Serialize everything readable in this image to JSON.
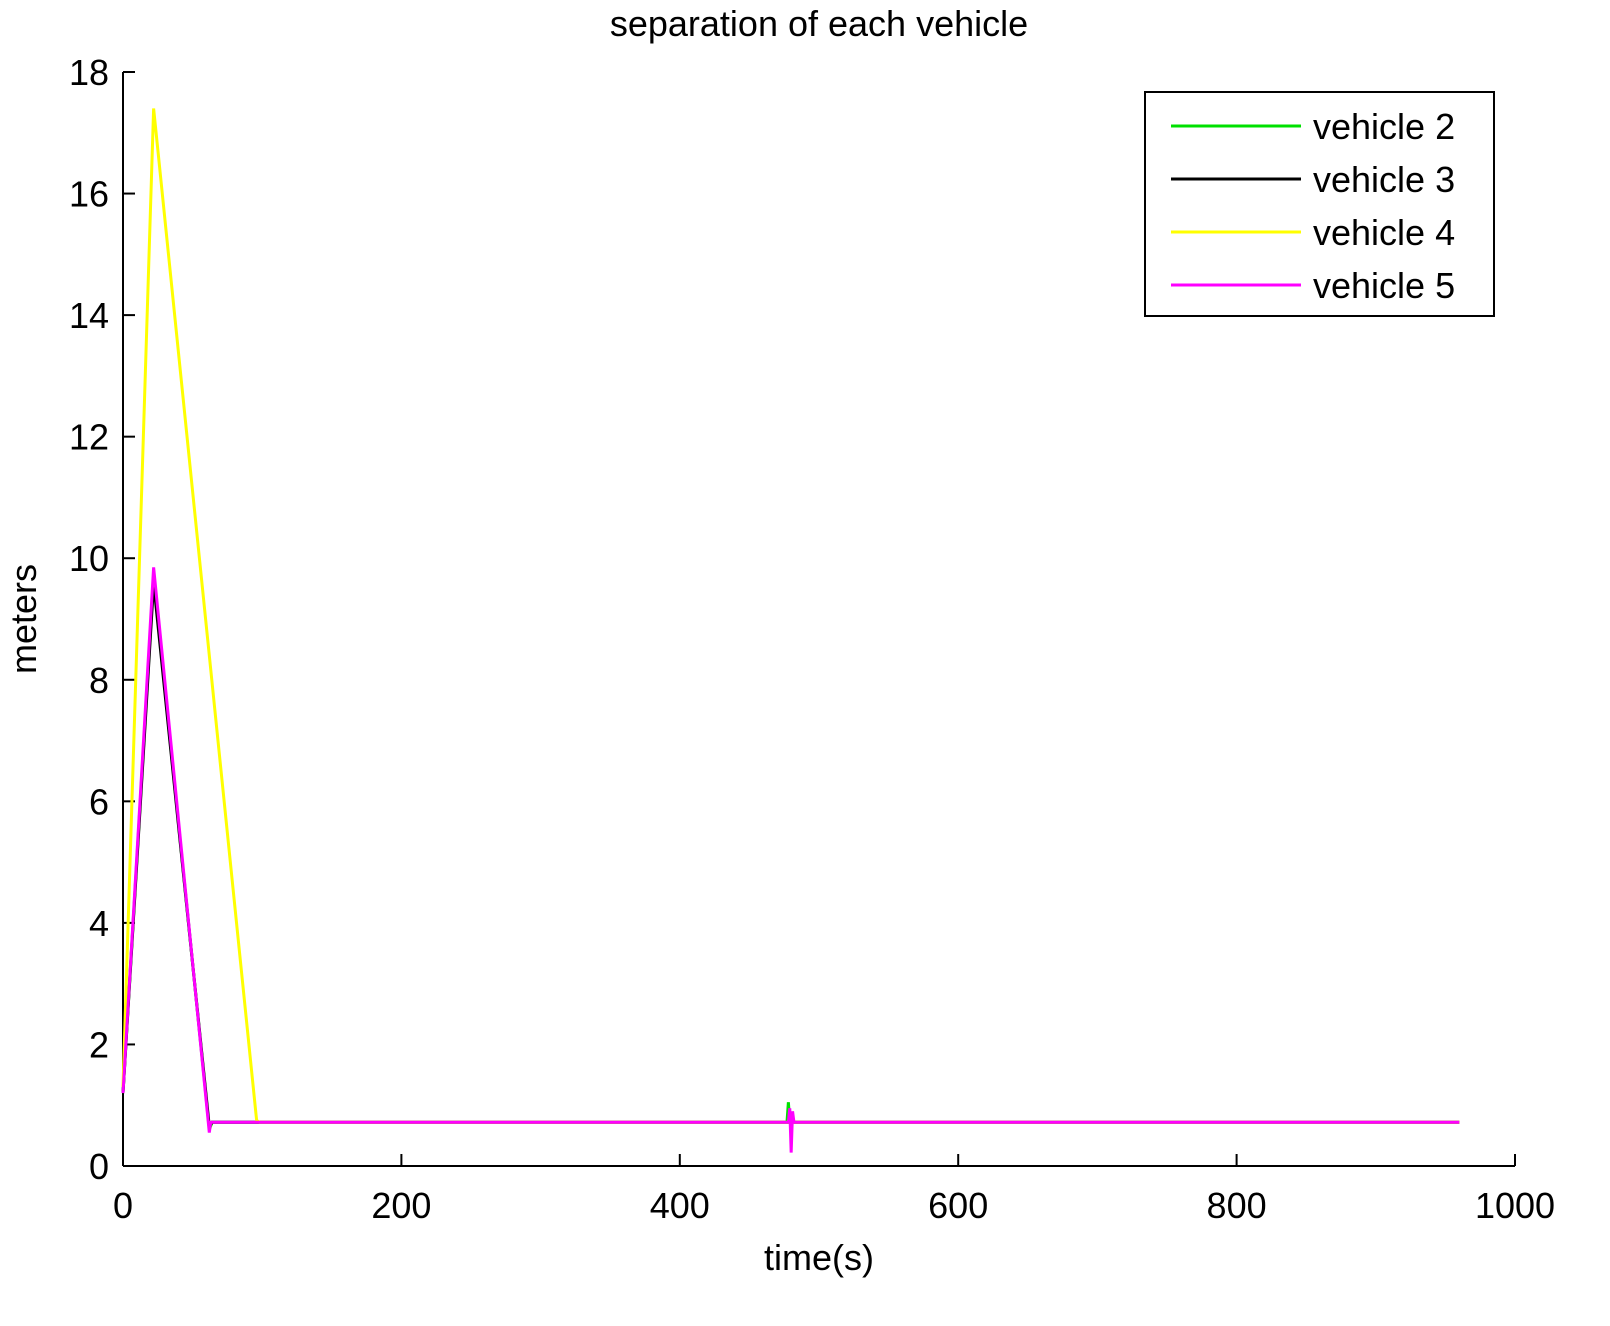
{
  "chart_data": {
    "type": "line",
    "title": "separation of each vehicle",
    "xlabel": "time(s)",
    "ylabel": "meters",
    "xlim": [
      0,
      1000
    ],
    "xticks": [
      0,
      200,
      400,
      600,
      800,
      1000
    ],
    "ylim": [
      0,
      18
    ],
    "yticks": [
      0,
      2,
      4,
      6,
      8,
      10,
      12,
      14,
      16,
      18
    ],
    "legend": "upper right",
    "series": [
      {
        "name": "vehicle 2",
        "color": "#00e000",
        "x": [
          0,
          22,
          62,
          64,
          477,
          478,
          479,
          481,
          960
        ],
        "values": [
          1.2,
          9.7,
          0.6,
          0.72,
          0.72,
          1.05,
          0.72,
          0.72,
          0.72
        ]
      },
      {
        "name": "vehicle 3",
        "color": "#000000",
        "x": [
          0,
          22,
          62,
          64,
          960
        ],
        "values": [
          1.2,
          9.6,
          0.65,
          0.72,
          0.72
        ]
      },
      {
        "name": "vehicle 4",
        "color": "#ffff00",
        "x": [
          0,
          22,
          96,
          98,
          960
        ],
        "values": [
          1.3,
          17.4,
          0.75,
          0.72,
          0.72
        ]
      },
      {
        "name": "vehicle 5",
        "color": "#ff00ff",
        "x": [
          0,
          22,
          62,
          63,
          478,
          479,
          480,
          481,
          482,
          960
        ],
        "values": [
          1.2,
          9.85,
          0.55,
          0.72,
          0.72,
          0.95,
          0.22,
          0.9,
          0.72,
          0.72
        ]
      }
    ]
  }
}
